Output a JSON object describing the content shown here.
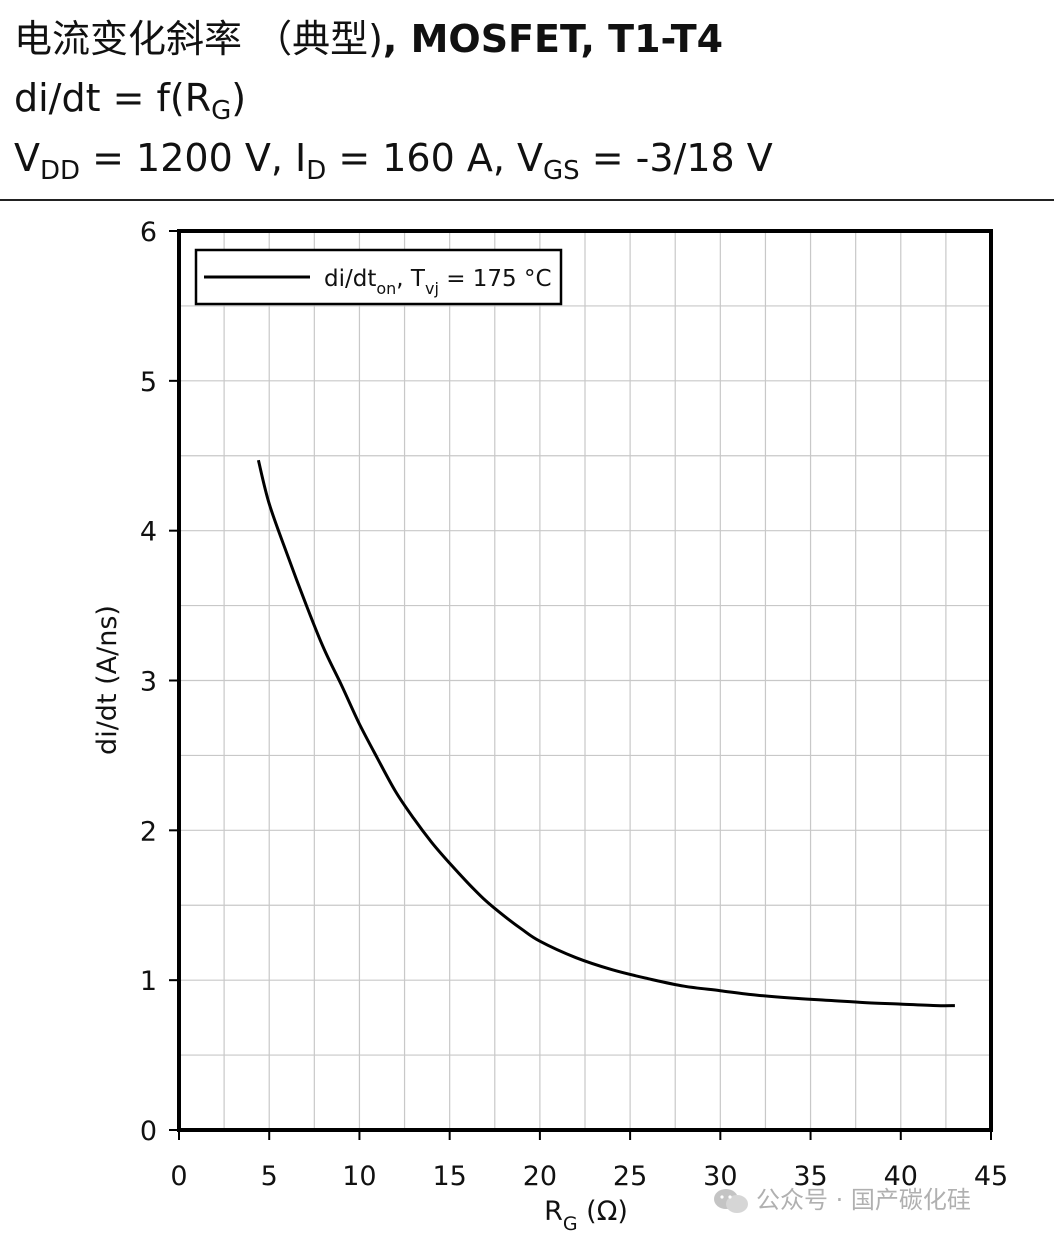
{
  "header": {
    "title_cn": "电流变化斜率 （典型)",
    "title_rest": ", MOSFET, T1-T4",
    "line2_main": "di/dt = f(R",
    "line2_sub": "G",
    "line2_end": ")",
    "line3_v": "V",
    "line3_vsub": "DD",
    "line3_mid1": " = 1200 V, I",
    "line3_isub": "D",
    "line3_mid2": " = 160 A, V",
    "line3_gssub": "GS",
    "line3_end": " = -3/18 V"
  },
  "watermark": {
    "text": "公众号 · 国产碳化硅"
  },
  "chart_data": {
    "type": "line",
    "x_label_main": "R",
    "x_label_sub": "G",
    "x_label_unit": " (Ω)",
    "y_label": "di/dt (A/ns)",
    "xlim": [
      0,
      45
    ],
    "ylim": [
      0,
      6
    ],
    "x_ticks": [
      "0",
      "5",
      "10",
      "15",
      "20",
      "25",
      "30",
      "35",
      "40",
      "45"
    ],
    "y_ticks": [
      "0",
      "1",
      "2",
      "3",
      "4",
      "5",
      "6"
    ],
    "grid": true,
    "legend_position": "top-left",
    "legend_main": "di/dt",
    "legend_sub1": "on",
    "legend_mid": ", T",
    "legend_sub2": "vj",
    "legend_end": " = 175 °C",
    "series": [
      {
        "name": "di/dton, Tvj = 175 °C",
        "color": "#000000",
        "x": [
          4.4,
          5,
          6,
          7,
          8,
          9,
          10,
          11,
          12,
          13,
          14,
          15,
          16,
          17,
          18,
          19,
          20,
          22,
          24,
          26,
          28,
          30,
          32,
          34,
          36,
          38,
          40,
          42,
          43
        ],
        "y": [
          4.47,
          4.18,
          3.84,
          3.52,
          3.22,
          2.97,
          2.71,
          2.48,
          2.26,
          2.08,
          1.92,
          1.78,
          1.65,
          1.53,
          1.43,
          1.34,
          1.26,
          1.15,
          1.07,
          1.01,
          0.96,
          0.93,
          0.9,
          0.88,
          0.865,
          0.85,
          0.84,
          0.83,
          0.83
        ]
      }
    ]
  }
}
